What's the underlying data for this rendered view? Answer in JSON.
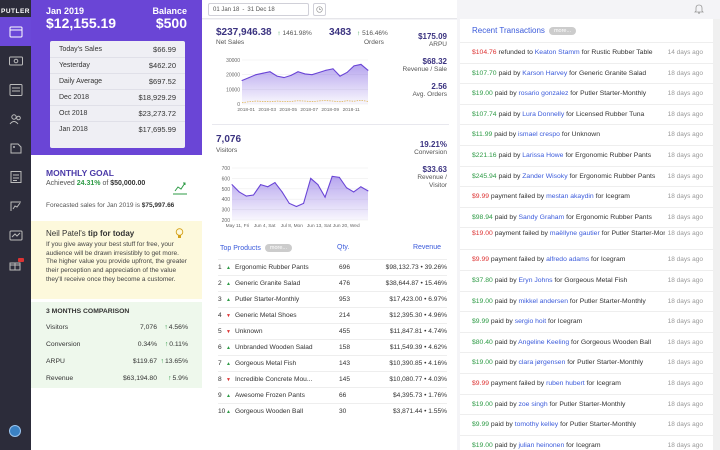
{
  "app": {
    "logo": "PUTLER"
  },
  "sidebar": {
    "items": [
      {
        "name": "sidebar-item-dashboard",
        "icon": "dashboard-icon"
      },
      {
        "name": "sidebar-item-sales",
        "icon": "money-icon"
      },
      {
        "name": "sidebar-item-transactions",
        "icon": "transactions-icon"
      },
      {
        "name": "sidebar-item-customers",
        "icon": "customers-icon"
      },
      {
        "name": "sidebar-item-products",
        "icon": "products-icon"
      },
      {
        "name": "sidebar-item-reports",
        "icon": "reports-icon"
      },
      {
        "name": "sidebar-item-subscriptions",
        "icon": "subscriptions-icon"
      },
      {
        "name": "sidebar-item-insights",
        "icon": "insights-icon"
      },
      {
        "name": "sidebar-item-gifts",
        "icon": "gift-icon",
        "badge": "new"
      }
    ]
  },
  "summary": {
    "month": "Jan 2019",
    "total": "$12,155.19",
    "balance_label": "Balance",
    "balance_value": "$500",
    "rows": [
      {
        "label": "Today's Sales",
        "value": "$66.99"
      },
      {
        "label": "Yesterday",
        "value": "$462.20"
      },
      {
        "label": "Daily Average",
        "value": "$697.52"
      },
      {
        "label": "Dec 2018",
        "value": "$18,929.29"
      },
      {
        "label": "Oct 2018",
        "value": "$23,273.72"
      },
      {
        "label": "Jan 2018",
        "value": "$17,695.99"
      }
    ]
  },
  "goal": {
    "title": "MONTHLY GOAL",
    "achieved_label": "Achieved",
    "achieved_pct": "24.31%",
    "of_label": "of",
    "target": "$50,000.00",
    "forecast_label": "Forecasted sales for Jan 2019 is",
    "forecast_value": "$75,997.66"
  },
  "tip": {
    "author": "Neil Patel's",
    "suffix": "tip for today",
    "text": "If you give away your best stuff for free, your audience will be drawn irresistibly to get more. The higher value you provide upfront, the greater their perception and appreciation of the value they'll receive once they become a customer."
  },
  "comparison": {
    "title": "3 MONTHS COMPARISON",
    "rows": [
      {
        "label": "Visitors",
        "value": "7,076",
        "change": "4.56%"
      },
      {
        "label": "Conversion",
        "value": "0.34%",
        "change": "0.11%"
      },
      {
        "label": "ARPU",
        "value": "$119.67",
        "change": "13.65%"
      },
      {
        "label": "Revenue",
        "value": "$63,194.80",
        "change": "5.9%"
      }
    ]
  },
  "daterange": {
    "from": "01 Jan 18",
    "sep": "-",
    "to": "31 Dec 18"
  },
  "netsales": {
    "value": "$237,946.38",
    "change": "1461.98%",
    "label": "Net Sales",
    "orders_value": "3483",
    "orders_change": "516.46%",
    "orders_label": "Orders"
  },
  "right_kpis": [
    {
      "value": "$175.09",
      "label1": "ARPU",
      "label2": ""
    },
    {
      "value": "$68.32",
      "label1": "Revenue / Sale",
      "label2": ""
    },
    {
      "value": "2.56",
      "label1": "Avg. Orders",
      "label2": ""
    }
  ],
  "visitors": {
    "value": "7,076",
    "label": "Visitors",
    "conversion_value": "19.21%",
    "conversion_label": "Conversion",
    "rpv_value": "$33.63",
    "rpv_label1": "Revenue /",
    "rpv_label2": "Visitor"
  },
  "chart_data": [
    {
      "type": "area",
      "y_ticks": [
        "30000",
        "20000",
        "10000",
        "0"
      ],
      "ylim": [
        0,
        30000
      ],
      "x_ticks": [
        "2018-01",
        "2018-03",
        "2018-05",
        "2018-07",
        "2018-09",
        "2018-11"
      ],
      "values": [
        16000,
        18000,
        20000,
        21000,
        22000,
        19000,
        18000,
        19500,
        22000,
        20500,
        20000,
        21500,
        23000,
        24000,
        19000,
        21500,
        26000,
        27000,
        23000
      ],
      "reference_values": [
        1000,
        1500,
        2000,
        1800,
        1500,
        2000,
        1700,
        1800,
        2200,
        2000,
        1600,
        2100,
        2300,
        2000,
        1500,
        2200,
        1900,
        2500,
        1800
      ]
    },
    {
      "type": "area",
      "y_ticks": [
        "700",
        "600",
        "500",
        "400",
        "300",
        "200"
      ],
      "ylim": [
        200,
        700
      ],
      "x_ticks": [
        "May 11, Fri",
        "Jun 4, Sat",
        "Jul 8, Mon",
        "Jun 13, Sat",
        "Jun 20, Wed"
      ],
      "values": [
        540,
        470,
        430,
        440,
        540,
        520,
        560,
        470,
        360,
        330,
        360,
        600,
        540,
        420,
        620,
        610,
        510,
        470,
        520,
        480
      ]
    }
  ],
  "products": {
    "title": "Top Products",
    "more": "more...",
    "qty_label": "Qty.",
    "revenue_label": "Revenue",
    "rows": [
      {
        "rank": "1",
        "trend": "up",
        "name": "Ergonomic Rubber Pants",
        "qty": "696",
        "revenue": "$98,132.73 • 39.26%"
      },
      {
        "rank": "2",
        "trend": "up",
        "name": "Generic Granite Salad",
        "qty": "476",
        "revenue": "$38,644.87 • 15.46%"
      },
      {
        "rank": "3",
        "trend": "up",
        "name": "Putler Starter-Monthly",
        "qty": "953",
        "revenue": "$17,423.00 • 6.97%"
      },
      {
        "rank": "4",
        "trend": "dn",
        "name": "Generic Metal Shoes",
        "qty": "214",
        "revenue": "$12,395.30 • 4.96%"
      },
      {
        "rank": "5",
        "trend": "dn",
        "name": "Unknown",
        "qty": "455",
        "revenue": "$11,847.81 • 4.74%"
      },
      {
        "rank": "6",
        "trend": "up",
        "name": "Unbranded Wooden Salad",
        "qty": "158",
        "revenue": "$11,549.39 • 4.62%"
      },
      {
        "rank": "7",
        "trend": "up",
        "name": "Gorgeous Metal Fish",
        "qty": "143",
        "revenue": "$10,390.85 • 4.16%"
      },
      {
        "rank": "8",
        "trend": "dn",
        "name": "Incredible Concrete Mou...",
        "qty": "145",
        "revenue": "$10,080.77 • 4.03%"
      },
      {
        "rank": "9",
        "trend": "up",
        "name": "Awesome Frozen Pants",
        "qty": "66",
        "revenue": "$4,395.73 • 1.76%"
      },
      {
        "rank": "10",
        "trend": "up",
        "name": "Gorgeous Wooden Ball",
        "qty": "30",
        "revenue": "$3,871.44 • 1.55%"
      }
    ]
  },
  "transactions": {
    "title": "Recent Transactions",
    "more": "more...",
    "rows": [
      {
        "amount": "$104.76",
        "kind": "neg",
        "verb": "refunded to",
        "who": "Keaton Stamm",
        "for": "for Rustic Rubber Table",
        "when": "14 days ago"
      },
      {
        "amount": "$107.70",
        "kind": "pos",
        "verb": "paid by",
        "who": "Karson Harvey",
        "for": "for Generic Granite Salad",
        "when": "18 days ago"
      },
      {
        "amount": "$19.00",
        "kind": "pos",
        "verb": "paid by",
        "who": "rosario gonzalez",
        "for": "for Putler Starter-Monthly",
        "when": "18 days ago"
      },
      {
        "amount": "$107.74",
        "kind": "pos",
        "verb": "paid by",
        "who": "Lura Donnelly",
        "for": "for Licensed Rubber Tuna",
        "when": "18 days ago"
      },
      {
        "amount": "$11.99",
        "kind": "pos",
        "verb": "paid by",
        "who": "ismael crespo",
        "for": "for Unknown",
        "when": "18 days ago"
      },
      {
        "amount": "$221.16",
        "kind": "pos",
        "verb": "paid by",
        "who": "Larissa Howe",
        "for": "for Ergonomic Rubber Pants",
        "when": "18 days ago"
      },
      {
        "amount": "$245.94",
        "kind": "pos",
        "verb": "paid by",
        "who": "Zander Wisoky",
        "for": "for Ergonomic Rubber Pants",
        "when": "18 days ago"
      },
      {
        "amount": "$9.99",
        "kind": "neg",
        "verb": "payment failed by",
        "who": "mestan akaydin",
        "for": "for Icegram",
        "when": "18 days ago"
      },
      {
        "amount": "$98.94",
        "kind": "pos",
        "verb": "paid by",
        "who": "Sandy Graham",
        "for": "for Ergonomic Rubber Pants",
        "when": "18 days ago"
      },
      {
        "amount": "$19.00",
        "kind": "neg",
        "verb": "payment failed by",
        "who": "maëllyne gautier",
        "for": "for Putler Starter-Monthly",
        "when": "18 days ago",
        "two_line": true
      },
      {
        "amount": "$9.99",
        "kind": "neg",
        "verb": "payment failed by",
        "who": "alfredo adams",
        "for": "for Icegram",
        "when": "18 days ago"
      },
      {
        "amount": "$37.80",
        "kind": "pos",
        "verb": "paid by",
        "who": "Eryn Johns",
        "for": "for Gorgeous Metal Fish",
        "when": "18 days ago"
      },
      {
        "amount": "$19.00",
        "kind": "pos",
        "verb": "paid by",
        "who": "mikkel andersen",
        "for": "for Putler Starter-Monthly",
        "when": "18 days ago"
      },
      {
        "amount": "$9.99",
        "kind": "pos",
        "verb": "paid by",
        "who": "sergio hoit",
        "for": "for Icegram",
        "when": "18 days ago"
      },
      {
        "amount": "$80.40",
        "kind": "pos",
        "verb": "paid by",
        "who": "Angeline Keeling",
        "for": "for Gorgeous Wooden Ball",
        "when": "18 days ago"
      },
      {
        "amount": "$19.00",
        "kind": "pos",
        "verb": "paid by",
        "who": "clara jørgensen",
        "for": "for Putler Starter-Monthly",
        "when": "18 days ago"
      },
      {
        "amount": "$9.99",
        "kind": "neg",
        "verb": "payment failed by",
        "who": "ruben hubert",
        "for": "for Icegram",
        "when": "18 days ago"
      },
      {
        "amount": "$19.00",
        "kind": "pos",
        "verb": "paid by",
        "who": "zoe singh",
        "for": "for Putler Starter-Monthly",
        "when": "18 days ago"
      },
      {
        "amount": "$9.99",
        "kind": "pos",
        "verb": "paid by",
        "who": "tomothy kelley",
        "for": "for Putler Starter-Monthly",
        "when": "18 days ago"
      },
      {
        "amount": "$19.00",
        "kind": "pos",
        "verb": "paid by",
        "who": "julian heinonen",
        "for": "for Icegram",
        "when": "18 days ago"
      }
    ]
  },
  "colors": {
    "accent": "#6a45d6",
    "positive": "#2e9b46",
    "negative": "#dd3333",
    "link": "#3b5bdb"
  }
}
